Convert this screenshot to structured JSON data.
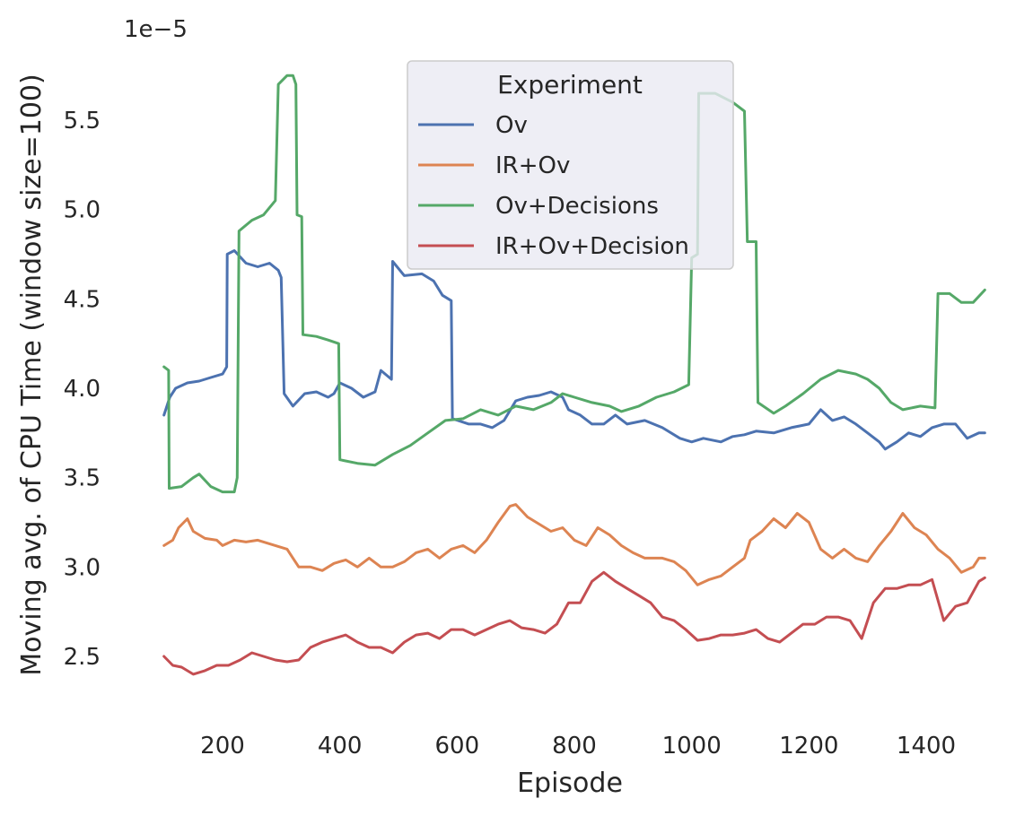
{
  "chart_data": {
    "type": "line",
    "title": "",
    "xlabel": "Episode",
    "ylabel": "Moving avg. of CPU Time (window size=100)",
    "y_offset_label": "1e−5",
    "xlim": [
      100,
      1500
    ],
    "ylim": [
      2.1,
      5.9
    ],
    "x_ticks": [
      200,
      400,
      600,
      800,
      1000,
      1200,
      1400
    ],
    "y_ticks": [
      2.5,
      3.0,
      3.5,
      4.0,
      4.5,
      5.0,
      5.5
    ],
    "y_tick_labels": [
      "2.5",
      "3.0",
      "3.5",
      "4.0",
      "4.5",
      "5.0",
      "5.5"
    ],
    "grid": false,
    "legend": {
      "title": "Experiment",
      "position": "top-center"
    },
    "series": [
      {
        "name": "Ov",
        "color": "#4c72b0",
        "points": [
          [
            100,
            3.85
          ],
          [
            110,
            3.95
          ],
          [
            120,
            4.0
          ],
          [
            140,
            4.03
          ],
          [
            160,
            4.04
          ],
          [
            180,
            4.06
          ],
          [
            200,
            4.08
          ],
          [
            207,
            4.12
          ],
          [
            208,
            4.75
          ],
          [
            220,
            4.77
          ],
          [
            240,
            4.7
          ],
          [
            260,
            4.68
          ],
          [
            280,
            4.7
          ],
          [
            295,
            4.66
          ],
          [
            300,
            4.62
          ],
          [
            305,
            3.97
          ],
          [
            320,
            3.9
          ],
          [
            340,
            3.97
          ],
          [
            360,
            3.98
          ],
          [
            380,
            3.95
          ],
          [
            390,
            3.97
          ],
          [
            400,
            4.03
          ],
          [
            420,
            4.0
          ],
          [
            440,
            3.95
          ],
          [
            460,
            3.98
          ],
          [
            470,
            4.1
          ],
          [
            488,
            4.05
          ],
          [
            490,
            4.71
          ],
          [
            510,
            4.63
          ],
          [
            540,
            4.64
          ],
          [
            560,
            4.6
          ],
          [
            575,
            4.52
          ],
          [
            590,
            4.49
          ],
          [
            592,
            3.83
          ],
          [
            620,
            3.8
          ],
          [
            640,
            3.8
          ],
          [
            660,
            3.78
          ],
          [
            680,
            3.82
          ],
          [
            700,
            3.93
          ],
          [
            720,
            3.95
          ],
          [
            740,
            3.96
          ],
          [
            760,
            3.98
          ],
          [
            780,
            3.95
          ],
          [
            790,
            3.88
          ],
          [
            810,
            3.85
          ],
          [
            830,
            3.8
          ],
          [
            850,
            3.8
          ],
          [
            870,
            3.85
          ],
          [
            890,
            3.8
          ],
          [
            920,
            3.82
          ],
          [
            950,
            3.78
          ],
          [
            980,
            3.72
          ],
          [
            1000,
            3.7
          ],
          [
            1020,
            3.72
          ],
          [
            1050,
            3.7
          ],
          [
            1070,
            3.73
          ],
          [
            1090,
            3.74
          ],
          [
            1110,
            3.76
          ],
          [
            1140,
            3.75
          ],
          [
            1170,
            3.78
          ],
          [
            1200,
            3.8
          ],
          [
            1220,
            3.88
          ],
          [
            1240,
            3.82
          ],
          [
            1260,
            3.84
          ],
          [
            1280,
            3.8
          ],
          [
            1300,
            3.75
          ],
          [
            1320,
            3.7
          ],
          [
            1330,
            3.66
          ],
          [
            1350,
            3.7
          ],
          [
            1370,
            3.75
          ],
          [
            1390,
            3.73
          ],
          [
            1410,
            3.78
          ],
          [
            1430,
            3.8
          ],
          [
            1450,
            3.8
          ],
          [
            1470,
            3.72
          ],
          [
            1490,
            3.75
          ],
          [
            1500,
            3.75
          ]
        ]
      },
      {
        "name": "IR+Ov",
        "color": "#dd8452",
        "points": [
          [
            100,
            3.12
          ],
          [
            115,
            3.15
          ],
          [
            125,
            3.22
          ],
          [
            140,
            3.27
          ],
          [
            150,
            3.2
          ],
          [
            170,
            3.16
          ],
          [
            190,
            3.15
          ],
          [
            200,
            3.12
          ],
          [
            220,
            3.15
          ],
          [
            240,
            3.14
          ],
          [
            260,
            3.15
          ],
          [
            290,
            3.12
          ],
          [
            310,
            3.1
          ],
          [
            320,
            3.05
          ],
          [
            330,
            3.0
          ],
          [
            350,
            3.0
          ],
          [
            370,
            2.98
          ],
          [
            390,
            3.02
          ],
          [
            410,
            3.04
          ],
          [
            430,
            3.0
          ],
          [
            450,
            3.05
          ],
          [
            470,
            3.0
          ],
          [
            490,
            3.0
          ],
          [
            510,
            3.03
          ],
          [
            530,
            3.08
          ],
          [
            550,
            3.1
          ],
          [
            570,
            3.05
          ],
          [
            590,
            3.1
          ],
          [
            610,
            3.12
          ],
          [
            630,
            3.08
          ],
          [
            650,
            3.15
          ],
          [
            670,
            3.25
          ],
          [
            690,
            3.34
          ],
          [
            700,
            3.35
          ],
          [
            720,
            3.28
          ],
          [
            740,
            3.24
          ],
          [
            760,
            3.2
          ],
          [
            780,
            3.22
          ],
          [
            800,
            3.15
          ],
          [
            820,
            3.12
          ],
          [
            840,
            3.22
          ],
          [
            860,
            3.18
          ],
          [
            880,
            3.12
          ],
          [
            900,
            3.08
          ],
          [
            920,
            3.05
          ],
          [
            950,
            3.05
          ],
          [
            970,
            3.03
          ],
          [
            990,
            2.98
          ],
          [
            1010,
            2.9
          ],
          [
            1030,
            2.93
          ],
          [
            1050,
            2.95
          ],
          [
            1070,
            3.0
          ],
          [
            1090,
            3.05
          ],
          [
            1100,
            3.15
          ],
          [
            1120,
            3.2
          ],
          [
            1140,
            3.27
          ],
          [
            1160,
            3.22
          ],
          [
            1180,
            3.3
          ],
          [
            1200,
            3.25
          ],
          [
            1220,
            3.1
          ],
          [
            1240,
            3.05
          ],
          [
            1260,
            3.1
          ],
          [
            1280,
            3.05
          ],
          [
            1300,
            3.03
          ],
          [
            1320,
            3.12
          ],
          [
            1340,
            3.2
          ],
          [
            1360,
            3.3
          ],
          [
            1380,
            3.22
          ],
          [
            1400,
            3.18
          ],
          [
            1420,
            3.1
          ],
          [
            1440,
            3.05
          ],
          [
            1460,
            2.97
          ],
          [
            1480,
            3.0
          ],
          [
            1490,
            3.05
          ],
          [
            1500,
            3.05
          ]
        ]
      },
      {
        "name": "Ov+Decisions",
        "color": "#55a868",
        "points": [
          [
            100,
            4.12
          ],
          [
            108,
            4.1
          ],
          [
            109,
            3.44
          ],
          [
            130,
            3.45
          ],
          [
            150,
            3.5
          ],
          [
            160,
            3.52
          ],
          [
            180,
            3.45
          ],
          [
            200,
            3.42
          ],
          [
            220,
            3.42
          ],
          [
            225,
            3.5
          ],
          [
            228,
            4.88
          ],
          [
            250,
            4.94
          ],
          [
            270,
            4.97
          ],
          [
            290,
            5.05
          ],
          [
            295,
            5.7
          ],
          [
            310,
            5.75
          ],
          [
            320,
            5.75
          ],
          [
            325,
            5.7
          ],
          [
            327,
            4.97
          ],
          [
            335,
            4.96
          ],
          [
            337,
            4.3
          ],
          [
            360,
            4.29
          ],
          [
            380,
            4.27
          ],
          [
            398,
            4.25
          ],
          [
            400,
            3.6
          ],
          [
            430,
            3.58
          ],
          [
            460,
            3.57
          ],
          [
            490,
            3.63
          ],
          [
            520,
            3.68
          ],
          [
            550,
            3.75
          ],
          [
            580,
            3.82
          ],
          [
            610,
            3.83
          ],
          [
            640,
            3.88
          ],
          [
            670,
            3.85
          ],
          [
            700,
            3.9
          ],
          [
            730,
            3.88
          ],
          [
            760,
            3.92
          ],
          [
            780,
            3.97
          ],
          [
            800,
            3.95
          ],
          [
            830,
            3.92
          ],
          [
            860,
            3.9
          ],
          [
            880,
            3.87
          ],
          [
            910,
            3.9
          ],
          [
            940,
            3.95
          ],
          [
            970,
            3.98
          ],
          [
            995,
            4.02
          ],
          [
            1000,
            4.73
          ],
          [
            1010,
            4.75
          ],
          [
            1012,
            5.65
          ],
          [
            1040,
            5.65
          ],
          [
            1070,
            5.6
          ],
          [
            1090,
            5.55
          ],
          [
            1095,
            4.82
          ],
          [
            1110,
            4.82
          ],
          [
            1113,
            3.92
          ],
          [
            1140,
            3.86
          ],
          [
            1160,
            3.9
          ],
          [
            1190,
            3.97
          ],
          [
            1220,
            4.05
          ],
          [
            1250,
            4.1
          ],
          [
            1280,
            4.08
          ],
          [
            1300,
            4.05
          ],
          [
            1320,
            4.0
          ],
          [
            1340,
            3.92
          ],
          [
            1360,
            3.88
          ],
          [
            1390,
            3.9
          ],
          [
            1415,
            3.89
          ],
          [
            1420,
            4.53
          ],
          [
            1440,
            4.53
          ],
          [
            1460,
            4.48
          ],
          [
            1480,
            4.48
          ],
          [
            1500,
            4.55
          ]
        ]
      },
      {
        "name": "IR+Ov+Decision",
        "color": "#c44e52",
        "points": [
          [
            100,
            2.5
          ],
          [
            115,
            2.45
          ],
          [
            130,
            2.44
          ],
          [
            150,
            2.4
          ],
          [
            170,
            2.42
          ],
          [
            190,
            2.45
          ],
          [
            210,
            2.45
          ],
          [
            230,
            2.48
          ],
          [
            250,
            2.52
          ],
          [
            270,
            2.5
          ],
          [
            290,
            2.48
          ],
          [
            310,
            2.47
          ],
          [
            330,
            2.48
          ],
          [
            350,
            2.55
          ],
          [
            370,
            2.58
          ],
          [
            390,
            2.6
          ],
          [
            410,
            2.62
          ],
          [
            430,
            2.58
          ],
          [
            450,
            2.55
          ],
          [
            470,
            2.55
          ],
          [
            490,
            2.52
          ],
          [
            510,
            2.58
          ],
          [
            530,
            2.62
          ],
          [
            550,
            2.63
          ],
          [
            570,
            2.6
          ],
          [
            590,
            2.65
          ],
          [
            610,
            2.65
          ],
          [
            630,
            2.62
          ],
          [
            650,
            2.65
          ],
          [
            670,
            2.68
          ],
          [
            690,
            2.7
          ],
          [
            710,
            2.66
          ],
          [
            730,
            2.65
          ],
          [
            750,
            2.63
          ],
          [
            770,
            2.68
          ],
          [
            790,
            2.8
          ],
          [
            810,
            2.8
          ],
          [
            830,
            2.92
          ],
          [
            850,
            2.97
          ],
          [
            870,
            2.92
          ],
          [
            890,
            2.88
          ],
          [
            910,
            2.84
          ],
          [
            930,
            2.8
          ],
          [
            950,
            2.72
          ],
          [
            970,
            2.7
          ],
          [
            990,
            2.65
          ],
          [
            1010,
            2.59
          ],
          [
            1030,
            2.6
          ],
          [
            1050,
            2.62
          ],
          [
            1070,
            2.62
          ],
          [
            1090,
            2.63
          ],
          [
            1110,
            2.65
          ],
          [
            1130,
            2.6
          ],
          [
            1150,
            2.58
          ],
          [
            1170,
            2.63
          ],
          [
            1190,
            2.68
          ],
          [
            1210,
            2.68
          ],
          [
            1230,
            2.72
          ],
          [
            1250,
            2.72
          ],
          [
            1270,
            2.7
          ],
          [
            1290,
            2.6
          ],
          [
            1310,
            2.8
          ],
          [
            1330,
            2.88
          ],
          [
            1350,
            2.88
          ],
          [
            1370,
            2.9
          ],
          [
            1390,
            2.9
          ],
          [
            1410,
            2.93
          ],
          [
            1430,
            2.7
          ],
          [
            1450,
            2.78
          ],
          [
            1470,
            2.8
          ],
          [
            1490,
            2.92
          ],
          [
            1500,
            2.94
          ]
        ]
      }
    ]
  }
}
